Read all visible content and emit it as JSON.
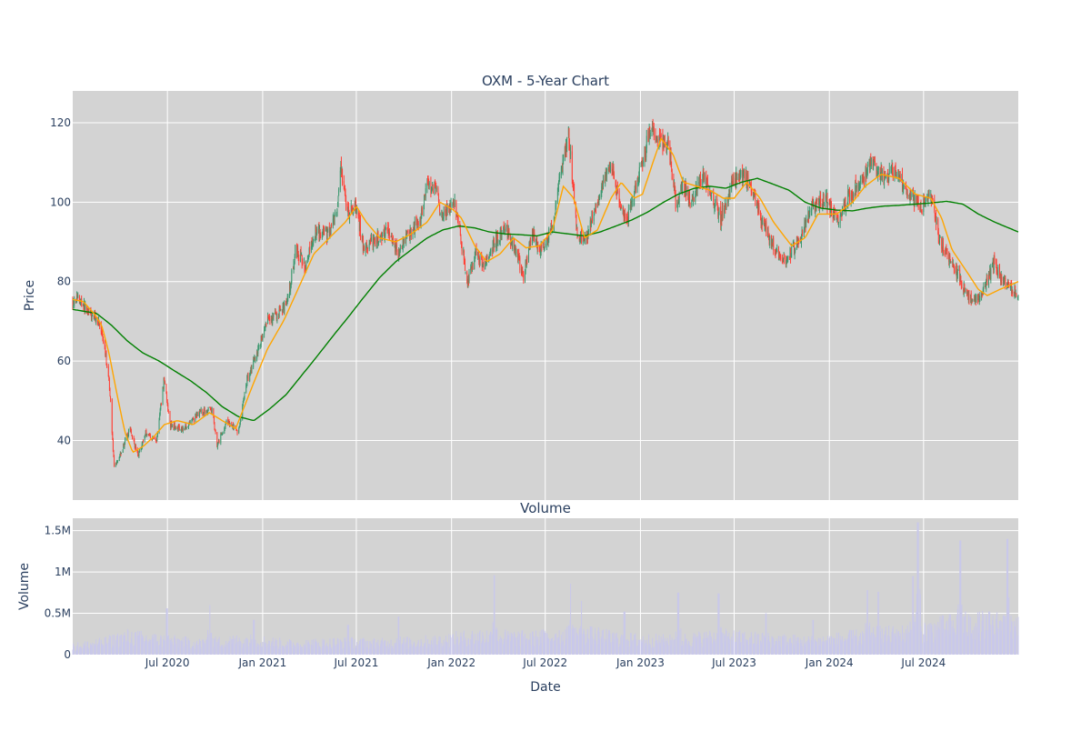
{
  "chart_data": {
    "type": "candlestick",
    "title": "OXM - 5-Year Chart",
    "price_panel": {
      "ylabel": "Price",
      "ylim": [
        25,
        128
      ],
      "y_ticks": [
        40,
        60,
        80,
        100,
        120
      ],
      "bg_color": "#d3d3d3",
      "up_color": "#3d9970",
      "down_color": "#ff4136",
      "ma_short_color": "#ffa500",
      "ma_long_color": "#008000",
      "price_keypoints": [
        [
          "2019-12-31",
          75
        ],
        [
          "2020-01-10",
          76
        ],
        [
          "2020-02-01",
          72
        ],
        [
          "2020-02-20",
          70
        ],
        [
          "2020-03-05",
          60
        ],
        [
          "2020-03-12",
          52
        ],
        [
          "2020-03-20",
          33
        ],
        [
          "2020-04-05",
          38
        ],
        [
          "2020-04-20",
          43
        ],
        [
          "2020-05-05",
          36
        ],
        [
          "2020-05-20",
          42
        ],
        [
          "2020-06-10",
          40
        ],
        [
          "2020-06-25",
          56
        ],
        [
          "2020-07-05",
          44
        ],
        [
          "2020-08-01",
          43
        ],
        [
          "2020-09-01",
          47
        ],
        [
          "2020-09-25",
          48
        ],
        [
          "2020-10-05",
          39
        ],
        [
          "2020-10-25",
          45
        ],
        [
          "2020-11-15",
          42
        ],
        [
          "2020-12-01",
          55
        ],
        [
          "2020-12-20",
          62
        ],
        [
          "2021-01-10",
          70
        ],
        [
          "2021-02-01",
          72
        ],
        [
          "2021-02-20",
          76
        ],
        [
          "2021-03-05",
          88
        ],
        [
          "2021-03-25",
          84
        ],
        [
          "2021-04-15",
          93
        ],
        [
          "2021-05-10",
          92
        ],
        [
          "2021-05-25",
          97
        ],
        [
          "2021-06-01",
          108
        ],
        [
          "2021-06-15",
          97
        ],
        [
          "2021-07-01",
          99
        ],
        [
          "2021-07-15",
          88
        ],
        [
          "2021-08-10",
          91
        ],
        [
          "2021-09-01",
          93
        ],
        [
          "2021-09-20",
          87
        ],
        [
          "2021-10-10",
          92
        ],
        [
          "2021-11-01",
          95
        ],
        [
          "2021-11-15",
          105
        ],
        [
          "2021-12-01",
          103
        ],
        [
          "2021-12-15",
          96
        ],
        [
          "2022-01-05",
          101
        ],
        [
          "2022-01-20",
          90
        ],
        [
          "2022-02-01",
          80
        ],
        [
          "2022-02-15",
          87
        ],
        [
          "2022-03-05",
          84
        ],
        [
          "2022-03-25",
          90
        ],
        [
          "2022-04-15",
          94
        ],
        [
          "2022-05-05",
          88
        ],
        [
          "2022-05-20",
          81
        ],
        [
          "2022-06-05",
          92
        ],
        [
          "2022-06-25",
          88
        ],
        [
          "2022-07-15",
          94
        ],
        [
          "2022-08-01",
          108
        ],
        [
          "2022-08-15",
          117
        ],
        [
          "2022-09-01",
          92
        ],
        [
          "2022-09-15",
          90
        ],
        [
          "2022-10-01",
          96
        ],
        [
          "2022-10-20",
          104
        ],
        [
          "2022-11-05",
          110
        ],
        [
          "2022-11-20",
          100
        ],
        [
          "2022-12-05",
          95
        ],
        [
          "2022-12-20",
          102
        ],
        [
          "2023-01-05",
          110
        ],
        [
          "2023-01-20",
          119
        ],
        [
          "2023-02-05",
          116
        ],
        [
          "2023-02-25",
          114
        ],
        [
          "2023-03-10",
          100
        ],
        [
          "2023-03-25",
          104
        ],
        [
          "2023-04-10",
          100
        ],
        [
          "2023-05-01",
          107
        ],
        [
          "2023-05-20",
          101
        ],
        [
          "2023-06-05",
          96
        ],
        [
          "2023-06-25",
          104
        ],
        [
          "2023-07-15",
          107
        ],
        [
          "2023-08-01",
          105
        ],
        [
          "2023-08-20",
          96
        ],
        [
          "2023-09-10",
          90
        ],
        [
          "2023-09-25",
          87
        ],
        [
          "2023-10-10",
          85
        ],
        [
          "2023-11-01",
          90
        ],
        [
          "2023-12-01",
          99
        ],
        [
          "2023-12-25",
          101
        ],
        [
          "2024-01-15",
          95
        ],
        [
          "2024-02-05",
          101
        ],
        [
          "2024-03-01",
          105
        ],
        [
          "2024-03-20",
          110
        ],
        [
          "2024-04-15",
          106
        ],
        [
          "2024-05-05",
          108
        ],
        [
          "2024-05-25",
          104
        ],
        [
          "2024-06-10",
          101
        ],
        [
          "2024-06-25",
          98
        ],
        [
          "2024-07-15",
          102
        ],
        [
          "2024-08-01",
          90
        ],
        [
          "2024-08-20",
          86
        ],
        [
          "2024-09-05",
          82
        ],
        [
          "2024-09-25",
          76
        ],
        [
          "2024-10-15",
          76
        ],
        [
          "2024-11-01",
          80
        ],
        [
          "2024-11-15",
          85
        ],
        [
          "2024-12-01",
          80
        ],
        [
          "2024-12-31",
          77
        ]
      ],
      "ma_short_keypoints": [
        [
          "2019-12-31",
          75.5
        ],
        [
          "2020-01-20",
          75
        ],
        [
          "2020-02-10",
          72
        ],
        [
          "2020-02-25",
          69
        ],
        [
          "2020-03-10",
          62
        ],
        [
          "2020-03-25",
          52
        ],
        [
          "2020-04-10",
          42
        ],
        [
          "2020-04-25",
          37
        ],
        [
          "2020-05-15",
          38.5
        ],
        [
          "2020-06-05",
          41
        ],
        [
          "2020-06-25",
          44
        ],
        [
          "2020-07-20",
          45
        ],
        [
          "2020-08-20",
          44
        ],
        [
          "2020-09-20",
          47
        ],
        [
          "2020-10-15",
          45
        ],
        [
          "2020-11-10",
          43
        ],
        [
          "2020-12-10",
          53
        ],
        [
          "2021-01-10",
          63
        ],
        [
          "2021-02-10",
          70
        ],
        [
          "2021-03-10",
          78
        ],
        [
          "2021-04-10",
          87
        ],
        [
          "2021-05-10",
          91
        ],
        [
          "2021-06-10",
          95
        ],
        [
          "2021-07-01",
          99
        ],
        [
          "2021-07-20",
          95
        ],
        [
          "2021-08-15",
          91
        ],
        [
          "2021-09-15",
          90
        ],
        [
          "2021-10-15",
          92
        ],
        [
          "2021-11-15",
          95
        ],
        [
          "2021-12-10",
          100
        ],
        [
          "2022-01-05",
          98
        ],
        [
          "2022-01-20",
          96
        ],
        [
          "2022-02-15",
          89
        ],
        [
          "2022-03-10",
          85
        ],
        [
          "2022-04-05",
          87
        ],
        [
          "2022-05-01",
          91
        ],
        [
          "2022-05-25",
          88.5
        ],
        [
          "2022-06-20",
          89
        ],
        [
          "2022-07-15",
          93
        ],
        [
          "2022-08-05",
          104
        ],
        [
          "2022-08-25",
          101
        ],
        [
          "2022-09-15",
          91
        ],
        [
          "2022-10-10",
          93
        ],
        [
          "2022-11-05",
          101
        ],
        [
          "2022-11-25",
          105
        ],
        [
          "2022-12-20",
          101
        ],
        [
          "2023-01-05",
          102
        ],
        [
          "2023-01-25",
          110
        ],
        [
          "2023-02-10",
          116
        ],
        [
          "2023-03-05",
          112
        ],
        [
          "2023-03-25",
          105
        ],
        [
          "2023-04-20",
          104
        ],
        [
          "2023-05-15",
          103
        ],
        [
          "2023-06-10",
          101
        ],
        [
          "2023-07-01",
          101
        ],
        [
          "2023-07-25",
          105
        ],
        [
          "2023-08-20",
          101
        ],
        [
          "2023-09-15",
          95
        ],
        [
          "2023-10-20",
          89
        ],
        [
          "2023-11-15",
          91
        ],
        [
          "2023-12-10",
          97
        ],
        [
          "2024-01-15",
          97
        ],
        [
          "2024-02-15",
          100
        ],
        [
          "2024-03-10",
          104
        ],
        [
          "2024-04-10",
          107
        ],
        [
          "2024-05-15",
          106
        ],
        [
          "2024-06-15",
          102
        ],
        [
          "2024-07-15",
          101
        ],
        [
          "2024-08-05",
          96
        ],
        [
          "2024-08-25",
          88
        ],
        [
          "2024-09-20",
          83
        ],
        [
          "2024-10-15",
          78
        ],
        [
          "2024-11-01",
          76.5
        ],
        [
          "2024-11-25",
          78
        ],
        [
          "2024-12-31",
          80
        ]
      ],
      "ma_long_keypoints": [
        [
          "2019-12-31",
          73
        ],
        [
          "2020-02-15",
          72
        ],
        [
          "2020-03-15",
          69
        ],
        [
          "2020-04-15",
          65
        ],
        [
          "2020-05-15",
          62
        ],
        [
          "2020-06-15",
          60
        ],
        [
          "2020-07-15",
          57.5
        ],
        [
          "2020-08-15",
          55
        ],
        [
          "2020-09-15",
          52
        ],
        [
          "2020-10-15",
          48.5
        ],
        [
          "2020-11-15",
          46
        ],
        [
          "2020-12-15",
          45
        ],
        [
          "2021-01-15",
          48
        ],
        [
          "2021-02-15",
          51.5
        ],
        [
          "2021-03-15",
          56
        ],
        [
          "2021-04-15",
          61
        ],
        [
          "2021-05-15",
          66
        ],
        [
          "2021-06-15",
          71
        ],
        [
          "2021-07-15",
          76
        ],
        [
          "2021-08-15",
          81
        ],
        [
          "2021-09-15",
          85
        ],
        [
          "2021-10-15",
          88
        ],
        [
          "2021-11-15",
          91
        ],
        [
          "2021-12-15",
          93
        ],
        [
          "2022-01-15",
          94
        ],
        [
          "2022-02-15",
          93.5
        ],
        [
          "2022-03-15",
          92.5
        ],
        [
          "2022-04-15",
          92
        ],
        [
          "2022-05-15",
          91.8
        ],
        [
          "2022-06-15",
          91.5
        ],
        [
          "2022-07-15",
          92.5
        ],
        [
          "2022-08-15",
          92
        ],
        [
          "2022-09-15",
          91.5
        ],
        [
          "2022-10-15",
          92.5
        ],
        [
          "2022-11-15",
          94
        ],
        [
          "2022-12-15",
          95.5
        ],
        [
          "2023-01-15",
          97.5
        ],
        [
          "2023-02-15",
          100
        ],
        [
          "2023-03-15",
          102
        ],
        [
          "2023-04-15",
          103.5
        ],
        [
          "2023-05-15",
          104
        ],
        [
          "2023-06-15",
          103.5
        ],
        [
          "2023-07-15",
          105
        ],
        [
          "2023-08-15",
          106
        ],
        [
          "2023-09-15",
          104.5
        ],
        [
          "2023-10-15",
          103
        ],
        [
          "2023-11-15",
          100
        ],
        [
          "2023-12-15",
          98.5
        ],
        [
          "2024-01-15",
          98
        ],
        [
          "2024-02-15",
          97.8
        ],
        [
          "2024-03-15",
          98.5
        ],
        [
          "2024-04-15",
          99
        ],
        [
          "2024-05-15",
          99.2
        ],
        [
          "2024-06-15",
          99.5
        ],
        [
          "2024-07-15",
          99.8
        ],
        [
          "2024-08-15",
          100.2
        ],
        [
          "2024-09-15",
          99.5
        ],
        [
          "2024-10-15",
          97
        ],
        [
          "2024-11-15",
          95
        ],
        [
          "2024-12-31",
          92.5
        ]
      ]
    },
    "volume_panel": {
      "title": "Volume",
      "ylabel": "Volume",
      "ylim": [
        0,
        1650000
      ],
      "y_ticks": [
        0,
        500000,
        1000000,
        1500000
      ],
      "y_tick_labels": [
        "0",
        "0.5M",
        "1M",
        "1.5M"
      ],
      "bar_color": "#c9c8ea",
      "base_keypoints": [
        [
          "2019-12-31",
          100000
        ],
        [
          "2020-03-01",
          150000
        ],
        [
          "2020-04-15",
          220000
        ],
        [
          "2020-06-15",
          180000
        ],
        [
          "2020-09-01",
          140000
        ],
        [
          "2020-12-01",
          180000
        ],
        [
          "2021-03-01",
          130000
        ],
        [
          "2021-06-01",
          150000
        ],
        [
          "2021-09-01",
          140000
        ],
        [
          "2021-12-01",
          170000
        ],
        [
          "2022-03-01",
          230000
        ],
        [
          "2022-06-01",
          200000
        ],
        [
          "2022-09-01",
          260000
        ],
        [
          "2022-12-01",
          190000
        ],
        [
          "2023-03-01",
          170000
        ],
        [
          "2023-06-01",
          220000
        ],
        [
          "2023-09-01",
          190000
        ],
        [
          "2023-12-01",
          160000
        ],
        [
          "2024-03-01",
          220000
        ],
        [
          "2024-06-01",
          260000
        ],
        [
          "2024-09-01",
          360000
        ],
        [
          "2024-12-31",
          380000
        ]
      ],
      "spikes": [
        [
          "2020-06-30",
          560000
        ],
        [
          "2020-09-20",
          600000
        ],
        [
          "2020-12-15",
          420000
        ],
        [
          "2021-06-15",
          360000
        ],
        [
          "2021-09-20",
          460000
        ],
        [
          "2022-03-25",
          960000
        ],
        [
          "2022-08-20",
          860000
        ],
        [
          "2022-09-10",
          650000
        ],
        [
          "2022-12-01",
          520000
        ],
        [
          "2023-03-15",
          750000
        ],
        [
          "2023-06-01",
          740000
        ],
        [
          "2023-09-01",
          500000
        ],
        [
          "2023-12-01",
          420000
        ],
        [
          "2024-03-15",
          780000
        ],
        [
          "2024-04-05",
          760000
        ],
        [
          "2024-06-20",
          1600000
        ],
        [
          "2024-06-10",
          950000
        ],
        [
          "2024-09-10",
          1380000
        ],
        [
          "2024-12-10",
          1400000
        ]
      ],
      "xlabel": "Date"
    },
    "x_axis": {
      "range": [
        "2019-12-31",
        "2024-12-31"
      ],
      "ticks": [
        "2020-07-01",
        "2021-01-01",
        "2021-07-01",
        "2022-01-01",
        "2022-07-01",
        "2023-01-01",
        "2023-07-01",
        "2024-01-01",
        "2024-07-01"
      ],
      "tick_labels": [
        "Jul 2020",
        "Jan 2021",
        "Jul 2021",
        "Jan 2022",
        "Jul 2022",
        "Jan 2023",
        "Jul 2023",
        "Jan 2024",
        "Jul 2024"
      ]
    }
  }
}
